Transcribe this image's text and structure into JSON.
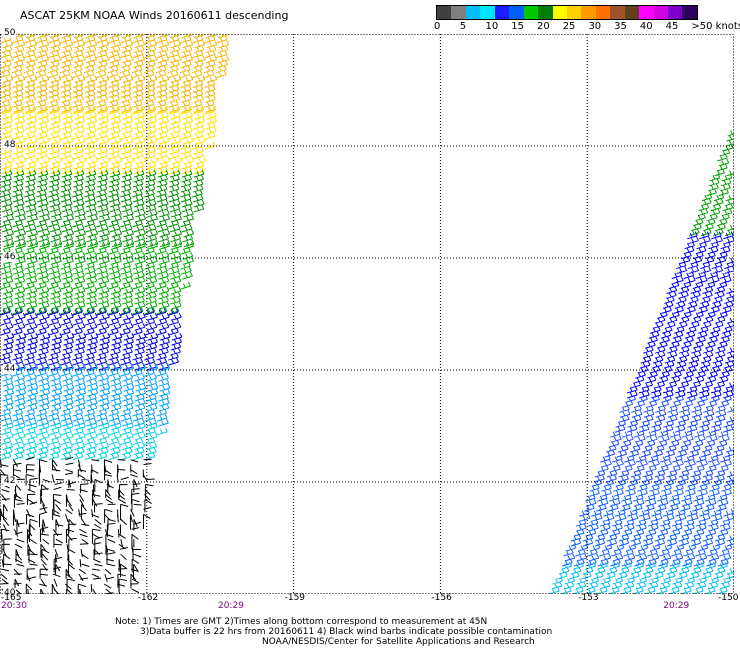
{
  "title": "ASCAT 25KM NOAA Winds 20160611 descending",
  "colorbar": {
    "colors": [
      "#404040",
      "#808080",
      "#00bfff",
      "#00e5ff",
      "#1c1cff",
      "#0060ff",
      "#00c800",
      "#008000",
      "#ffff00",
      "#ffd000",
      "#ff9900",
      "#ff7000",
      "#a0522d",
      "#604020",
      "#ff00ff",
      "#d000e0",
      "#7a00cc",
      "#300060"
    ],
    "labels": [
      "0",
      "5",
      "10",
      "15",
      "20",
      "25",
      "30",
      "35",
      "40",
      "45",
      ">50 knots"
    ],
    "label_values": [
      0,
      5,
      10,
      15,
      20,
      25,
      30,
      35,
      40,
      45,
      50
    ]
  },
  "map": {
    "lon_range": [
      -165,
      -150
    ],
    "lat_range": [
      40,
      50
    ],
    "lat_labels": [
      "50",
      "48",
      "46",
      "44",
      "42",
      "40"
    ],
    "lat_values": [
      50,
      48,
      46,
      44,
      42,
      40
    ],
    "lon_labels": [
      "-165",
      "-162",
      "-159",
      "-156",
      "-153",
      "-150"
    ],
    "lon_values": [
      -165,
      -162,
      -159,
      -156,
      -153,
      -150
    ],
    "time_labels": [
      {
        "text": "20:30",
        "lon": -165
      },
      {
        "text": "20:29",
        "lon": -160.3
      },
      {
        "text": "20:29",
        "lon": -151.2
      }
    ],
    "swaths": [
      {
        "name": "west",
        "bands": [
          {
            "lat": [
              48.6,
              50
            ],
            "color": "#f4b400"
          },
          {
            "lat": [
              47.5,
              48.6
            ],
            "color": "#ffe000"
          },
          {
            "lat": [
              46.2,
              47.5
            ],
            "color": "#009000"
          },
          {
            "lat": [
              45.0,
              46.2
            ],
            "color": "#00b000"
          },
          {
            "lat": [
              44.0,
              45.0
            ],
            "color": "#0000e0"
          },
          {
            "lat": [
              43.0,
              44.0
            ],
            "color": "#00a0ff"
          },
          {
            "lat": [
              42.4,
              43.0
            ],
            "color": "#00d0e0"
          },
          {
            "lat": [
              40,
              42.4
            ],
            "color": "#000000"
          }
        ]
      },
      {
        "name": "east",
        "bands": [
          {
            "lat": [
              46.4,
              48.3
            ],
            "color": "#00a000"
          },
          {
            "lat": [
              43.5,
              46.4
            ],
            "color": "#0000ff"
          },
          {
            "lat": [
              42.0,
              43.5
            ],
            "color": "#2050ff"
          },
          {
            "lat": [
              40.5,
              42.0
            ],
            "color": "#1060ff"
          },
          {
            "lat": [
              40,
              40.5
            ],
            "color": "#00c0f0"
          }
        ]
      }
    ]
  },
  "notes": {
    "line1": "Note: 1) Times are GMT 2)Times along bottom correspond to measurement at 45N",
    "line2": "3)Data buffer is 22 hrs from 20160611 4) Black wind barbs indicate possible contamination",
    "credit": "NOAA/NESDIS/Center for Satellite Applications and Research"
  }
}
